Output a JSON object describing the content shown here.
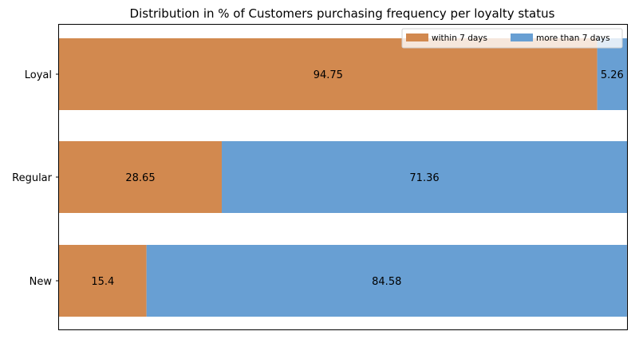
{
  "chart_data": {
    "type": "bar",
    "orientation": "horizontal",
    "stacked": true,
    "title": "Distribution in % of Customers purchasing frequency per loyalty status",
    "xlabel": "",
    "ylabel": "",
    "categories": [
      "Loyal",
      "Regular",
      "New"
    ],
    "xlim": [
      0,
      100
    ],
    "x_ticks_visible": false,
    "grid": false,
    "legend_position": "top-right",
    "series": [
      {
        "name": "within 7 days",
        "color": "#d2894f",
        "values": [
          94.75,
          28.65,
          15.4
        ]
      },
      {
        "name": "more than 7 days",
        "color": "#689fd3",
        "values": [
          5.26,
          71.36,
          84.58
        ]
      }
    ]
  }
}
